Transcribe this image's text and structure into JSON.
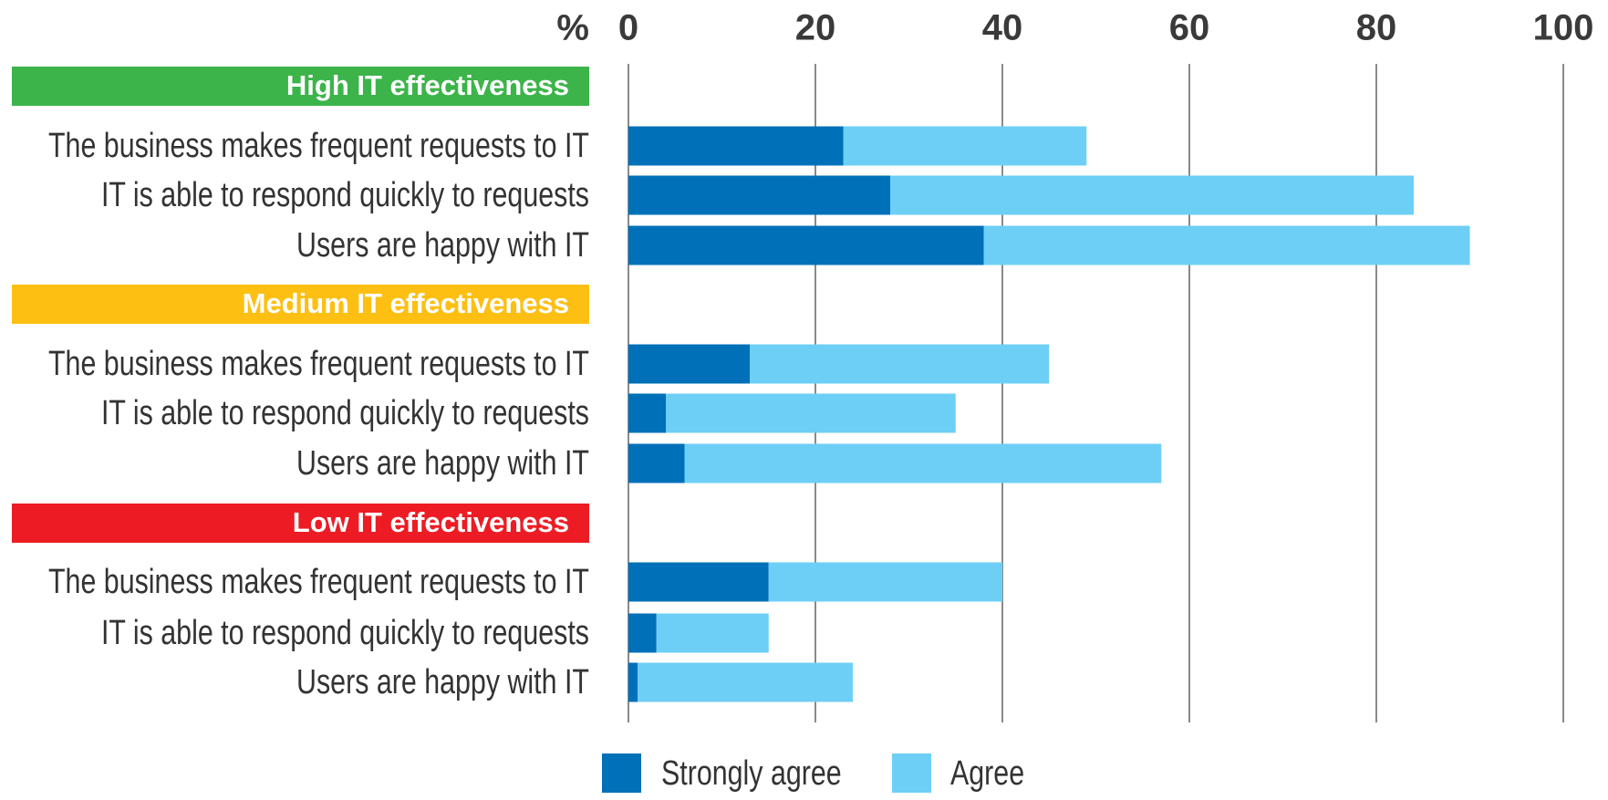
{
  "chart_data": {
    "type": "bar",
    "orientation": "horizontal",
    "stacked": true,
    "xlabel": "%",
    "xlim": [
      0,
      100
    ],
    "xticks": [
      0,
      20,
      40,
      60,
      80,
      100
    ],
    "grid": true,
    "legend": "bottom",
    "groups": [
      {
        "label": "High IT effectiveness",
        "color": "#3cb44a",
        "categories": [
          "The business makes frequent requests to IT",
          "IT is able to respond quickly to requests",
          "Users are happy with IT"
        ]
      },
      {
        "label": "Medium IT effectiveness",
        "color": "#fdbf12",
        "categories": [
          "The business makes frequent requests to IT",
          "IT is able to respond quickly to requests",
          "Users are happy with IT"
        ]
      },
      {
        "label": "Low IT effectiveness",
        "color": "#ed1c24",
        "categories": [
          "The business makes frequent requests to IT",
          "IT is able to respond quickly to requests",
          "Users are happy with IT"
        ]
      }
    ],
    "series": [
      {
        "name": "Strongly agree",
        "color": "#0070b9",
        "values": [
          23,
          28,
          38,
          13,
          4,
          6,
          15,
          3,
          1
        ]
      },
      {
        "name": "Agree",
        "color": "#6dcff6",
        "values": [
          26,
          56,
          52,
          32,
          31,
          51,
          25,
          12,
          23
        ]
      }
    ]
  }
}
